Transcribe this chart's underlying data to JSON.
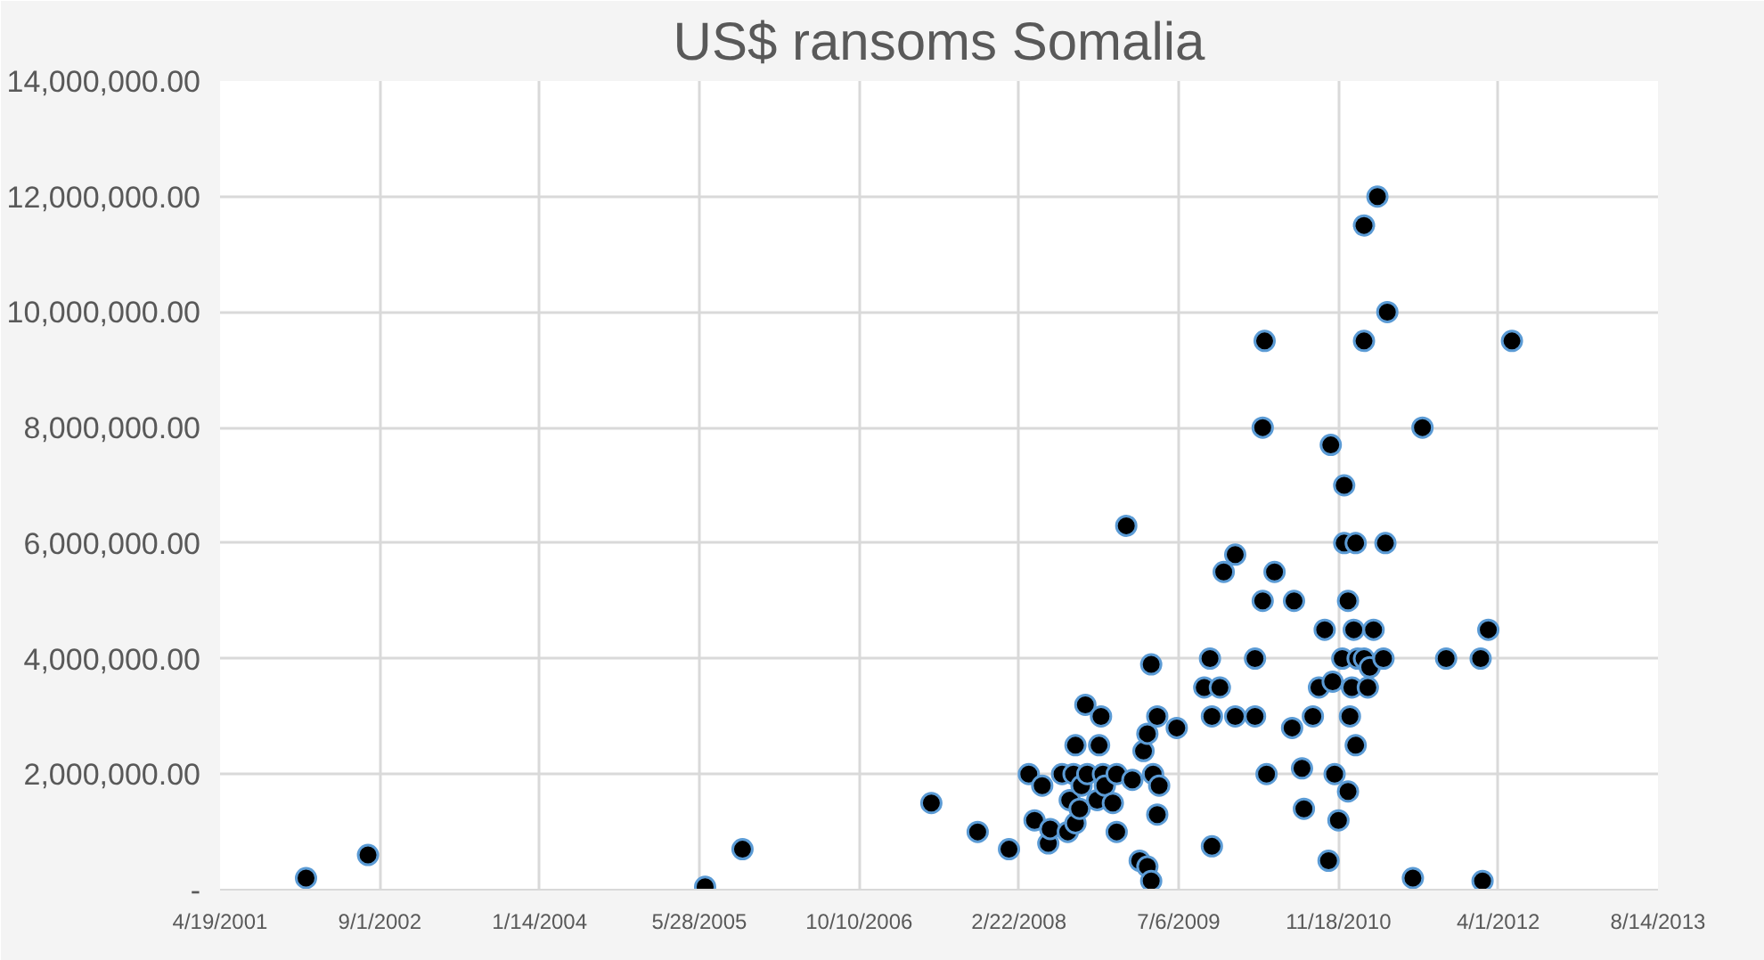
{
  "chart_data": {
    "type": "scatter",
    "title": "US$ ransoms Somalia",
    "x": [
      "2002-01-13",
      "2002-07-26",
      "2005-06-15",
      "2005-10-10",
      "2007-05-24",
      "2007-10-16",
      "2008-01-22",
      "2008-03-24",
      "2008-04-11",
      "2008-05-05",
      "2008-05-24",
      "2008-05-30",
      "2008-07-06",
      "2008-07-24",
      "2008-07-30",
      "2008-08-11",
      "2008-08-17",
      "2008-08-17",
      "2008-08-30",
      "2008-09-05",
      "2008-09-17",
      "2008-09-23",
      "2008-10-24",
      "2008-10-30",
      "2008-11-05",
      "2008-11-11",
      "2008-11-17",
      "2008-12-12",
      "2008-12-24",
      "2008-12-24",
      "2009-01-23",
      "2009-02-11",
      "2009-03-06",
      "2009-03-18",
      "2009-03-30",
      "2009-03-30",
      "2009-04-11",
      "2009-04-11",
      "2009-04-17",
      "2009-04-30",
      "2009-04-30",
      "2009-05-06",
      "2009-06-30",
      "2009-09-24",
      "2009-10-12",
      "2009-10-18",
      "2009-10-18",
      "2009-11-12",
      "2009-11-24",
      "2009-12-30",
      "2009-12-30",
      "2010-03-02",
      "2010-03-02",
      "2010-03-26",
      "2010-03-26",
      "2010-04-01",
      "2010-04-07",
      "2010-05-02",
      "2010-06-26",
      "2010-07-02",
      "2010-07-27",
      "2010-08-02",
      "2010-08-30",
      "2010-09-18",
      "2010-10-06",
      "2010-10-18",
      "2010-10-25",
      "2010-10-31",
      "2010-11-06",
      "2010-11-18",
      "2010-11-30",
      "2010-12-06",
      "2010-12-06",
      "2010-12-18",
      "2010-12-18",
      "2010-12-24",
      "2010-12-30",
      "2011-01-05",
      "2011-01-11",
      "2011-01-11",
      "2011-01-17",
      "2011-02-06",
      "2011-02-06",
      "2011-02-06",
      "2011-02-18",
      "2011-02-24",
      "2011-03-08",
      "2011-03-20",
      "2011-04-08",
      "2011-04-14",
      "2011-04-20",
      "2011-07-09",
      "2011-08-08",
      "2011-10-21",
      "2012-02-06",
      "2012-02-12",
      "2012-03-01",
      "2012-05-14"
    ],
    "series": [
      {
        "color": "#000000",
        "values": [
          200000,
          600000,
          50000,
          700000,
          1500000,
          1000000,
          700000,
          2000000,
          1200000,
          1800000,
          800000,
          1050000,
          2000000,
          1000000,
          1550000,
          2000000,
          1150000,
          2500000,
          1400000,
          1800000,
          3200000,
          2000000,
          1550000,
          2500000,
          3000000,
          2000000,
          1800000,
          1500000,
          2000000,
          1000000,
          6300000,
          1900000,
          500000,
          2400000,
          400000,
          2700000,
          150000,
          3900000,
          2000000,
          3000000,
          1300000,
          1800000,
          2800000,
          3500000,
          4000000,
          3000000,
          750000,
          3500000,
          5500000,
          5800000,
          3000000,
          3000000,
          4000000,
          8000000,
          5000000,
          9500000,
          2000000,
          5500000,
          2800000,
          5000000,
          2100000,
          1400000,
          3000000,
          3500000,
          4500000,
          500000,
          7700000,
          3600000,
          2000000,
          1200000,
          4000000,
          7000000,
          6000000,
          5000000,
          1700000,
          3000000,
          3500000,
          4500000,
          6000000,
          2500000,
          4000000,
          4000000,
          11500000,
          9500000,
          3500000,
          3850000,
          4500000,
          12000000,
          4000000,
          6000000,
          10000000,
          200000,
          8000000,
          4000000,
          4000000,
          150000,
          4500000,
          9500000
        ]
      }
    ],
    "xlim": [
      "2001-04-19",
      "2013-08-14"
    ],
    "xticks": [
      {
        "value": "2001-04-19",
        "label": "4/19/2001"
      },
      {
        "value": "2002-09-01",
        "label": "9/1/2002"
      },
      {
        "value": "2004-01-14",
        "label": "1/14/2004"
      },
      {
        "value": "2005-05-28",
        "label": "5/28/2005"
      },
      {
        "value": "2006-10-10",
        "label": "10/10/2006"
      },
      {
        "value": "2008-02-22",
        "label": "2/22/2008"
      },
      {
        "value": "2009-07-06",
        "label": "7/6/2009"
      },
      {
        "value": "2010-11-18",
        "label": "11/18/2010"
      },
      {
        "value": "2012-04-01",
        "label": "4/1/2012"
      },
      {
        "value": "2013-08-14",
        "label": "8/14/2013"
      }
    ],
    "ylim": [
      0,
      14000000
    ],
    "yticks": [
      {
        "value": 0,
        "label": "-"
      },
      {
        "value": 2000000,
        "label": "2,000,000.00"
      },
      {
        "value": 4000000,
        "label": "4,000,000.00"
      },
      {
        "value": 6000000,
        "label": "6,000,000.00"
      },
      {
        "value": 8000000,
        "label": "8,000,000.00"
      },
      {
        "value": 10000000,
        "label": "10,000,000.00"
      },
      {
        "value": 12000000,
        "label": "12,000,000.00"
      },
      {
        "value": 14000000,
        "label": "14,000,000.00"
      }
    ],
    "grid": true,
    "marker": "circle"
  }
}
